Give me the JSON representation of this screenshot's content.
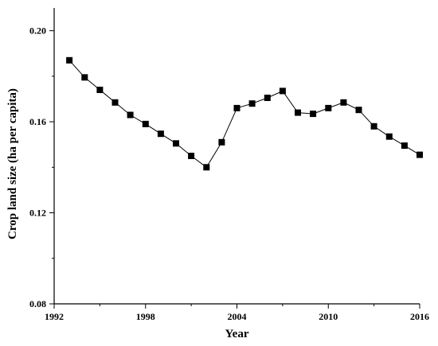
{
  "chart_data": {
    "type": "line",
    "title": "",
    "xlabel": "Year",
    "ylabel": "Crop land size (ha per capita)",
    "xlim": [
      1992,
      2016
    ],
    "ylim": [
      0.08,
      0.21
    ],
    "x_ticks": [
      1992,
      1998,
      2004,
      2010,
      2016
    ],
    "x_tick_labels": [
      "1992",
      "1998",
      "2004",
      "2010",
      "2016"
    ],
    "y_ticks": [
      0.08,
      0.12,
      0.16,
      0.2
    ],
    "y_tick_labels": [
      "0.08",
      "0.12",
      "0.16",
      "0.20"
    ],
    "grid": false,
    "legend": "none",
    "marker": "square",
    "color": "#000000",
    "series": [
      {
        "x": [
          1993,
          1994,
          1995,
          1996,
          1997,
          1998,
          1999,
          2000,
          2001,
          2002,
          2003,
          2004,
          2005,
          2006,
          2007,
          2008,
          2009,
          2010,
          2011,
          2012,
          2013,
          2014,
          2015,
          2016
        ],
        "y": [
          0.187,
          0.1795,
          0.174,
          0.1685,
          0.163,
          0.159,
          0.1547,
          0.1505,
          0.145,
          0.14,
          0.151,
          0.166,
          0.168,
          0.1705,
          0.1735,
          0.164,
          0.1635,
          0.166,
          0.1685,
          0.1652,
          0.158,
          0.1535,
          0.1495,
          0.1455
        ]
      }
    ]
  }
}
